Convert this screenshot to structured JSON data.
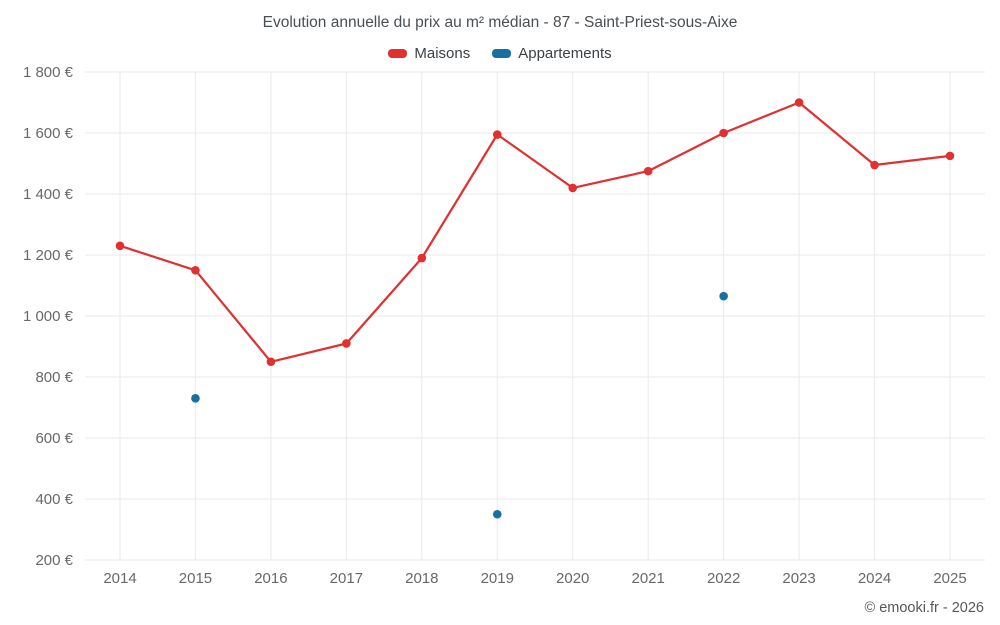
{
  "chart": {
    "title": "Evolution annuelle du prix au m² médian - 87 - Saint-Priest-sous-Aixe",
    "footer": "© emooki.fr - 2026"
  },
  "chart_data": {
    "type": "line",
    "title": "Evolution annuelle du prix au m² médian - 87 - Saint-Priest-sous-Aixe",
    "categories": [
      "2014",
      "2015",
      "2016",
      "2017",
      "2018",
      "2019",
      "2020",
      "2021",
      "2022",
      "2023",
      "2024",
      "2025"
    ],
    "series": [
      {
        "name": "Maisons",
        "color": "#e03030",
        "draw_line": true,
        "values": [
          1230,
          1150,
          850,
          910,
          1190,
          1595,
          1420,
          1475,
          1600,
          1700,
          1495,
          1525
        ]
      },
      {
        "name": "Appartements",
        "color": "#17709f",
        "draw_line": false,
        "values": [
          null,
          730,
          null,
          null,
          null,
          350,
          null,
          null,
          1065,
          null,
          null,
          null
        ]
      }
    ],
    "ylim": [
      200,
      1800
    ],
    "ytick_step": 200,
    "ytick_labels": [
      "200 €",
      "400 €",
      "600 €",
      "800 €",
      "1 000 €",
      "1 200 €",
      "1 400 €",
      "1 600 €",
      "1 800 €"
    ],
    "grid": "both",
    "grid_color": "#e9eaeb",
    "legend_position": "top"
  }
}
